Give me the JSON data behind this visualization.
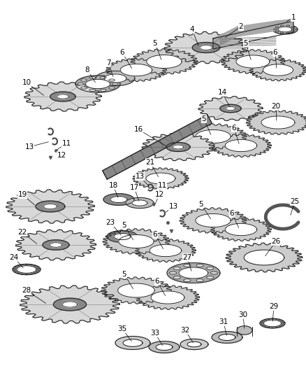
{
  "background_color": "#ffffff",
  "fig_width": 4.39,
  "fig_height": 5.33,
  "dpi": 100,
  "line_color": "#000000",
  "text_color": "#000000",
  "font_size": 7.5,
  "gear_fill": "#d8d8d8",
  "gear_dark": "#888888",
  "gear_edge": "#222222",
  "ring_fill": "#cccccc",
  "bearing_fill": "#aaaaaa"
}
